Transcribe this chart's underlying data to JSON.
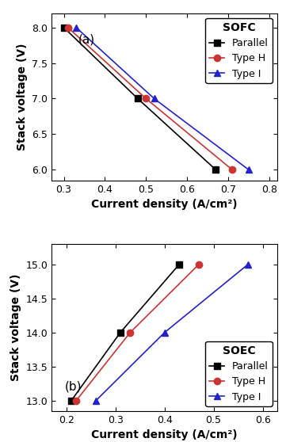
{
  "sofc": {
    "parallel": {
      "x": [
        0.3,
        0.48,
        0.67
      ],
      "y": [
        8.0,
        7.0,
        6.0
      ],
      "color": "#000000",
      "marker": "s"
    },
    "type_h": {
      "x": [
        0.31,
        0.5,
        0.71
      ],
      "y": [
        8.0,
        7.0,
        6.0
      ],
      "color": "#cc3333",
      "marker": "o"
    },
    "type_i": {
      "x": [
        0.33,
        0.52,
        0.75
      ],
      "y": [
        8.0,
        7.0,
        6.0
      ],
      "color": "#2222cc",
      "marker": "^"
    }
  },
  "soec": {
    "parallel": {
      "x": [
        0.21,
        0.31,
        0.43
      ],
      "y": [
        13.0,
        14.0,
        15.0
      ],
      "color": "#000000",
      "marker": "s"
    },
    "type_h": {
      "x": [
        0.22,
        0.33,
        0.47
      ],
      "y": [
        13.0,
        14.0,
        15.0
      ],
      "color": "#cc3333",
      "marker": "o"
    },
    "type_i": {
      "x": [
        0.26,
        0.4,
        0.57
      ],
      "y": [
        13.0,
        14.0,
        15.0
      ],
      "color": "#2222cc",
      "marker": "^"
    }
  },
  "sofc_xlim": [
    0.27,
    0.82
  ],
  "sofc_ylim": [
    5.85,
    8.2
  ],
  "sofc_xticks": [
    0.3,
    0.4,
    0.5,
    0.6,
    0.7,
    0.8
  ],
  "sofc_yticks": [
    6.0,
    6.5,
    7.0,
    7.5,
    8.0
  ],
  "soec_xlim": [
    0.17,
    0.63
  ],
  "soec_ylim": [
    12.85,
    15.3
  ],
  "soec_xticks": [
    0.2,
    0.3,
    0.4,
    0.5,
    0.6
  ],
  "soec_yticks": [
    13.0,
    13.5,
    14.0,
    14.5,
    15.0
  ],
  "xlabel": "Current density (A/cm²)",
  "ylabel": "Stack voltage (V)",
  "label_parallel": "Parallel",
  "label_type_h": "Type H",
  "label_type_i": "Type I",
  "label_sofc": "SOFC",
  "label_soec": "SOEC",
  "panel_a": "(a)",
  "panel_b": "(b)"
}
